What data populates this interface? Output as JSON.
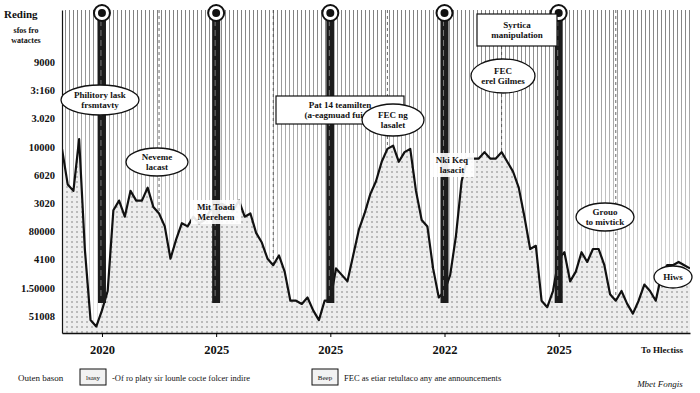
{
  "chart_data": {
    "type": "line",
    "y_label": "Reding",
    "y_axis_labels": [
      "9000",
      "3:160",
      "3.020",
      "10000",
      "6020",
      "3020",
      "80000",
      "4100",
      "1.50000",
      "51008"
    ],
    "categories": [
      null,
      null,
      null,
      null,
      null,
      null,
      null,
      "2020",
      null,
      null,
      null,
      null,
      null,
      null,
      null,
      null,
      null,
      null,
      null,
      null,
      null,
      null,
      null,
      null,
      null,
      null,
      null,
      "2025",
      null,
      null,
      null,
      null,
      null,
      null,
      null,
      null,
      null,
      null,
      null,
      null,
      null,
      null,
      null,
      null,
      null,
      null,
      null,
      "2025",
      null,
      null,
      null,
      null,
      null,
      null,
      null,
      null,
      null,
      null,
      null,
      null,
      null,
      null,
      null,
      null,
      null,
      null,
      null,
      "2022",
      null,
      null,
      null,
      null,
      null,
      null,
      null,
      null,
      null,
      null,
      null,
      null,
      null,
      null,
      null,
      null,
      null,
      null,
      null,
      "2025",
      null,
      null,
      null,
      null,
      null,
      null,
      null,
      null,
      null,
      null,
      null,
      null,
      null,
      null,
      null,
      null,
      null,
      null,
      null,
      null,
      null,
      null,
      null
    ],
    "values": [
      57,
      46,
      44,
      60,
      26,
      4,
      2,
      7,
      13,
      38,
      41,
      36,
      44,
      41,
      41,
      45,
      39,
      37,
      33,
      23,
      29,
      34,
      33,
      36,
      34,
      35,
      38,
      39,
      40,
      39,
      38,
      41,
      36,
      37,
      31,
      28,
      23,
      21,
      24,
      19,
      10,
      10,
      9,
      11,
      7,
      4,
      10,
      10,
      20,
      18,
      16,
      24,
      32,
      37,
      43,
      47,
      53,
      57,
      58,
      53,
      56,
      57,
      44,
      35,
      33,
      20,
      11,
      13,
      18,
      30,
      47,
      54,
      54,
      54,
      56,
      54,
      54,
      56,
      53,
      50,
      45,
      36,
      26,
      27,
      10,
      8,
      13,
      23,
      25,
      16,
      19,
      25,
      22,
      26,
      26,
      21,
      12,
      10,
      13,
      9,
      6,
      10,
      15,
      13,
      10,
      18,
      21,
      21,
      22,
      21,
      20
    ],
    "color": "#111111",
    "ylim": [
      0,
      100
    ],
    "grid": false,
    "tick_labels": "x",
    "annotations": [
      [
        "Philitory lask",
        "frsmtavty"
      ],
      [
        "Neveme",
        "lacast"
      ],
      [
        "Mit Toadi",
        "Merehem"
      ],
      [
        "Pat 14 teamilten",
        "(a-eagmuad fuing)"
      ],
      [
        "FEC ng",
        "lasalet"
      ],
      [
        "Nki Keq",
        "lasacit"
      ],
      [
        "Syrtica",
        "manipulation"
      ],
      [
        "FEC",
        "erel Gilmes"
      ],
      [
        "Grouo",
        "to mivtick"
      ],
      [
        "Hiws"
      ],
      [
        "To Hlectiss"
      ],
      [
        "Mbet Fongis"
      ],
      [
        "sfos fro",
        "watactes"
      ]
    ],
    "notes": {
      "title": "Outen bason",
      "items": [
        {
          "key": "lsasy",
          "text": "-Of ro platy sir lounle cocte folcer indire"
        },
        {
          "key": "Beep",
          "text": "FEC as etiar retultaco any ane announcements"
        }
      ]
    }
  }
}
